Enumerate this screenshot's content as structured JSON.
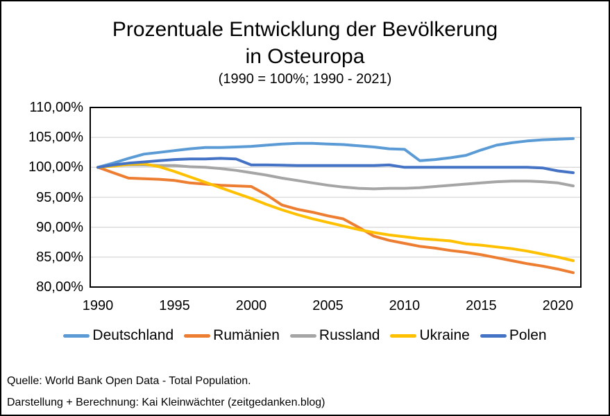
{
  "title": {
    "line1": "Prozentuale Entwicklung der Bevölkerung",
    "line2": "in Osteuropa",
    "subtitle": "(1990 = 100%; 1990 - 2021)"
  },
  "footer": {
    "source": "Quelle: World Bank Open Data - Total Population.",
    "credit": "Darstellung + Berechnung: Kai Kleinwächter (zeitgedanken.blog)"
  },
  "chart_data": {
    "type": "line",
    "title": "Prozentuale Entwicklung der Bevölkerung in Osteuropa",
    "subtitle": "(1990 = 100%; 1990 - 2021)",
    "xlabel": "",
    "ylabel": "",
    "ylim": [
      80,
      110
    ],
    "grid": true,
    "gridline_color": "#d9d9d9",
    "legend_position": "bottom",
    "x": [
      1990,
      1991,
      1992,
      1993,
      1994,
      1995,
      1996,
      1997,
      1998,
      1999,
      2000,
      2001,
      2002,
      2003,
      2004,
      2005,
      2006,
      2007,
      2008,
      2009,
      2010,
      2011,
      2012,
      2013,
      2014,
      2015,
      2016,
      2017,
      2018,
      2019,
      2020,
      2021
    ],
    "x_ticks": [
      {
        "value": 1990,
        "label": "1990"
      },
      {
        "value": 1995,
        "label": "1995"
      },
      {
        "value": 2000,
        "label": "2000"
      },
      {
        "value": 2005,
        "label": "2005"
      },
      {
        "value": 2010,
        "label": "2010"
      },
      {
        "value": 2015,
        "label": "2015"
      },
      {
        "value": 2020,
        "label": "2020"
      }
    ],
    "y_ticks": [
      {
        "value": 110,
        "label": "110,00%"
      },
      {
        "value": 105,
        "label": "105,00%"
      },
      {
        "value": 100,
        "label": "100,00%"
      },
      {
        "value": 95,
        "label": "95,00%"
      },
      {
        "value": 90,
        "label": "90,00%"
      },
      {
        "value": 85,
        "label": "85,00%"
      },
      {
        "value": 80,
        "label": "80,00%"
      }
    ],
    "series": [
      {
        "id": "deutschland",
        "name": "Deutschland",
        "color": "#5B9BD5",
        "values": [
          100,
          100.7,
          101.5,
          102.2,
          102.5,
          102.8,
          103.1,
          103.3,
          103.3,
          103.4,
          103.5,
          103.7,
          103.9,
          104.0,
          104.0,
          103.9,
          103.8,
          103.6,
          103.4,
          103.1,
          103.0,
          101.1,
          101.3,
          101.6,
          102.0,
          102.9,
          103.7,
          104.1,
          104.4,
          104.6,
          104.7,
          104.8
        ]
      },
      {
        "id": "rumaenien",
        "name": "Rumänien",
        "color": "#ED7D31",
        "values": [
          100,
          99.1,
          98.2,
          98.1,
          98.0,
          97.8,
          97.4,
          97.2,
          97.0,
          96.9,
          96.8,
          95.4,
          93.7,
          93.0,
          92.5,
          91.9,
          91.4,
          90.0,
          88.5,
          87.8,
          87.3,
          86.8,
          86.5,
          86.1,
          85.8,
          85.4,
          84.9,
          84.4,
          83.9,
          83.5,
          83.0,
          82.4
        ]
      },
      {
        "id": "russland",
        "name": "Russland",
        "color": "#A5A5A5",
        "values": [
          100,
          100.3,
          100.4,
          100.4,
          100.3,
          100.3,
          100.1,
          100.0,
          99.8,
          99.5,
          99.1,
          98.7,
          98.2,
          97.8,
          97.4,
          97.0,
          96.7,
          96.5,
          96.4,
          96.5,
          96.5,
          96.6,
          96.8,
          97.0,
          97.2,
          97.4,
          97.6,
          97.7,
          97.7,
          97.6,
          97.4,
          96.9
        ]
      },
      {
        "id": "ukraine",
        "name": "Ukraine",
        "color": "#FFC000",
        "values": [
          100,
          100.2,
          100.5,
          100.6,
          100.1,
          99.3,
          98.4,
          97.5,
          96.6,
          95.7,
          94.8,
          93.8,
          92.9,
          92.1,
          91.4,
          90.8,
          90.2,
          89.6,
          89.1,
          88.7,
          88.4,
          88.1,
          87.9,
          87.7,
          87.2,
          87.0,
          86.7,
          86.4,
          86.0,
          85.5,
          85.0,
          84.4
        ]
      },
      {
        "id": "polen",
        "name": "Polen",
        "color": "#4472C4",
        "values": [
          100,
          100.4,
          100.7,
          100.9,
          101.1,
          101.3,
          101.4,
          101.4,
          101.5,
          101.4,
          100.4,
          100.4,
          100.35,
          100.3,
          100.3,
          100.3,
          100.3,
          100.3,
          100.3,
          100.4,
          100.0,
          100.0,
          100.0,
          100.0,
          100.0,
          100.0,
          100.0,
          100.0,
          100.0,
          99.9,
          99.4,
          99.1
        ]
      }
    ]
  }
}
